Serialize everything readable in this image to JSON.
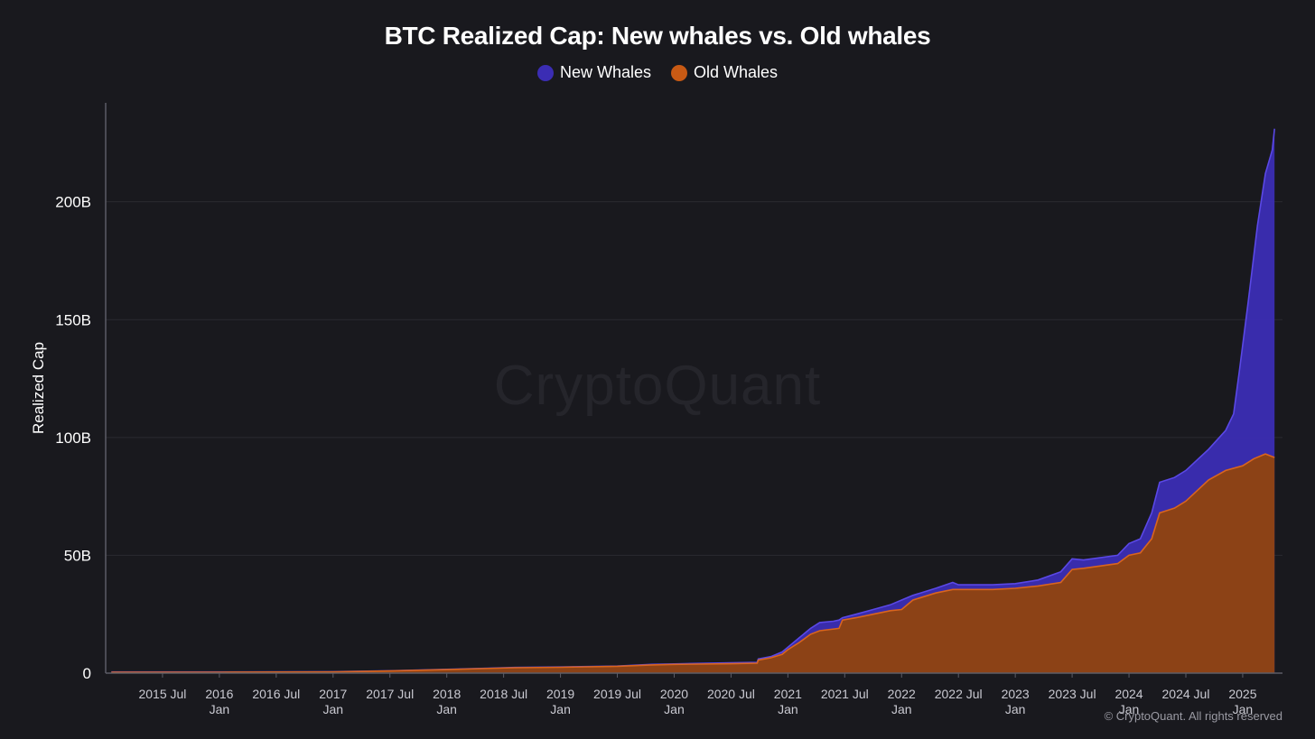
{
  "header": {
    "title": "BTC Realized Cap: New whales vs. Old whales"
  },
  "legend": {
    "items": [
      {
        "label": "New Whales",
        "color": "#3b2db4"
      },
      {
        "label": "Old Whales",
        "color": "#c85a14"
      }
    ]
  },
  "watermark": "CryptoQuant",
  "footer": {
    "copyright": "© CryptoQuant. All rights reserved"
  },
  "chart_data": {
    "type": "area",
    "title": "BTC Realized Cap: New whales vs. Old whales",
    "xlabel": "",
    "ylabel": "Realized Cap",
    "ylim": [
      0,
      242
    ],
    "y_unit": "B",
    "yticks": [
      "0",
      "50B",
      "100B",
      "150B",
      "200B"
    ],
    "grid": "horizontal",
    "legend_position": "top",
    "x_ticks": [
      {
        "t": 2015.5,
        "label": "2015 Jul",
        "sub": ""
      },
      {
        "t": 2016.0,
        "label": "2016",
        "sub": "Jan"
      },
      {
        "t": 2016.5,
        "label": "2016 Jul",
        "sub": ""
      },
      {
        "t": 2017.0,
        "label": "2017",
        "sub": "Jan"
      },
      {
        "t": 2017.5,
        "label": "2017 Jul",
        "sub": ""
      },
      {
        "t": 2018.0,
        "label": "2018",
        "sub": "Jan"
      },
      {
        "t": 2018.5,
        "label": "2018 Jul",
        "sub": ""
      },
      {
        "t": 2019.0,
        "label": "2019",
        "sub": "Jan"
      },
      {
        "t": 2019.5,
        "label": "2019 Jul",
        "sub": ""
      },
      {
        "t": 2020.0,
        "label": "2020",
        "sub": "Jan"
      },
      {
        "t": 2020.5,
        "label": "2020 Jul",
        "sub": ""
      },
      {
        "t": 2021.0,
        "label": "2021",
        "sub": "Jan"
      },
      {
        "t": 2021.5,
        "label": "2021 Jul",
        "sub": ""
      },
      {
        "t": 2022.0,
        "label": "2022",
        "sub": "Jan"
      },
      {
        "t": 2022.5,
        "label": "2022 Jul",
        "sub": ""
      },
      {
        "t": 2023.0,
        "label": "2023",
        "sub": "Jan"
      },
      {
        "t": 2023.5,
        "label": "2023 Jul",
        "sub": ""
      },
      {
        "t": 2024.0,
        "label": "2024",
        "sub": "Jan"
      },
      {
        "t": 2024.5,
        "label": "2024 Jul",
        "sub": ""
      },
      {
        "t": 2025.0,
        "label": "2025",
        "sub": "Jan"
      }
    ],
    "series": [
      {
        "name": "New Whales",
        "color": "#3b2db4",
        "stroke": "#5a48e6",
        "points": [
          [
            2015.05,
            0.5
          ],
          [
            2016.0,
            0.5
          ],
          [
            2017.0,
            0.6
          ],
          [
            2017.5,
            1.0
          ],
          [
            2018.0,
            1.6
          ],
          [
            2018.3,
            2.0
          ],
          [
            2018.6,
            2.4
          ],
          [
            2019.0,
            2.6
          ],
          [
            2019.5,
            3.0
          ],
          [
            2019.8,
            3.7
          ],
          [
            2020.0,
            3.9
          ],
          [
            2020.5,
            4.4
          ],
          [
            2020.73,
            4.6
          ],
          [
            2020.74,
            6.0
          ],
          [
            2020.85,
            7.0
          ],
          [
            2020.95,
            9.0
          ],
          [
            2021.0,
            11.0
          ],
          [
            2021.1,
            15.0
          ],
          [
            2021.2,
            19.0
          ],
          [
            2021.28,
            21.5
          ],
          [
            2021.4,
            22.0
          ],
          [
            2021.45,
            22.5
          ],
          [
            2021.48,
            23.5
          ],
          [
            2021.6,
            25.0
          ],
          [
            2021.75,
            27.0
          ],
          [
            2021.9,
            29.0
          ],
          [
            2022.0,
            31.0
          ],
          [
            2022.1,
            33.0
          ],
          [
            2022.3,
            36.0
          ],
          [
            2022.45,
            38.5
          ],
          [
            2022.5,
            37.5
          ],
          [
            2022.8,
            37.5
          ],
          [
            2023.0,
            38.0
          ],
          [
            2023.2,
            39.5
          ],
          [
            2023.4,
            43.0
          ],
          [
            2023.5,
            48.5
          ],
          [
            2023.6,
            48.0
          ],
          [
            2023.9,
            50.0
          ],
          [
            2024.0,
            55.0
          ],
          [
            2024.1,
            57.0
          ],
          [
            2024.2,
            68.0
          ],
          [
            2024.27,
            81.0
          ],
          [
            2024.4,
            83.0
          ],
          [
            2024.5,
            86.0
          ],
          [
            2024.7,
            95.0
          ],
          [
            2024.85,
            103.0
          ],
          [
            2024.92,
            110.0
          ],
          [
            2024.97,
            128.0
          ],
          [
            2025.05,
            158.0
          ],
          [
            2025.13,
            190.0
          ],
          [
            2025.2,
            212.0
          ],
          [
            2025.26,
            222.0
          ],
          [
            2025.28,
            231.0
          ],
          [
            2025.28,
            0
          ]
        ]
      },
      {
        "name": "Old Whales",
        "color": "#8e4212",
        "stroke": "#d9651e",
        "points": [
          [
            2015.05,
            0.4
          ],
          [
            2016.0,
            0.4
          ],
          [
            2017.0,
            0.5
          ],
          [
            2017.5,
            0.9
          ],
          [
            2018.0,
            1.5
          ],
          [
            2018.3,
            1.9
          ],
          [
            2018.6,
            2.3
          ],
          [
            2019.0,
            2.5
          ],
          [
            2019.5,
            2.9
          ],
          [
            2019.8,
            3.5
          ],
          [
            2020.0,
            3.7
          ],
          [
            2020.5,
            4.0
          ],
          [
            2020.73,
            4.2
          ],
          [
            2020.74,
            5.5
          ],
          [
            2020.85,
            6.5
          ],
          [
            2020.95,
            8.0
          ],
          [
            2021.0,
            10.0
          ],
          [
            2021.1,
            13.0
          ],
          [
            2021.2,
            16.5
          ],
          [
            2021.28,
            18.0
          ],
          [
            2021.45,
            19.0
          ],
          [
            2021.48,
            22.5
          ],
          [
            2021.6,
            23.5
          ],
          [
            2021.75,
            25.0
          ],
          [
            2021.9,
            26.5
          ],
          [
            2022.0,
            27.0
          ],
          [
            2022.1,
            31.0
          ],
          [
            2022.3,
            34.0
          ],
          [
            2022.45,
            35.5
          ],
          [
            2022.8,
            35.5
          ],
          [
            2023.0,
            36.0
          ],
          [
            2023.2,
            37.0
          ],
          [
            2023.4,
            38.5
          ],
          [
            2023.5,
            44.0
          ],
          [
            2023.6,
            44.5
          ],
          [
            2023.9,
            46.5
          ],
          [
            2024.0,
            50.0
          ],
          [
            2024.1,
            51.0
          ],
          [
            2024.2,
            57.0
          ],
          [
            2024.27,
            68.0
          ],
          [
            2024.4,
            70.0
          ],
          [
            2024.5,
            73.0
          ],
          [
            2024.7,
            82.0
          ],
          [
            2024.85,
            86.0
          ],
          [
            2025.0,
            88.0
          ],
          [
            2025.1,
            91.0
          ],
          [
            2025.2,
            93.0
          ],
          [
            2025.28,
            91.5
          ],
          [
            2025.28,
            0
          ]
        ]
      }
    ]
  }
}
